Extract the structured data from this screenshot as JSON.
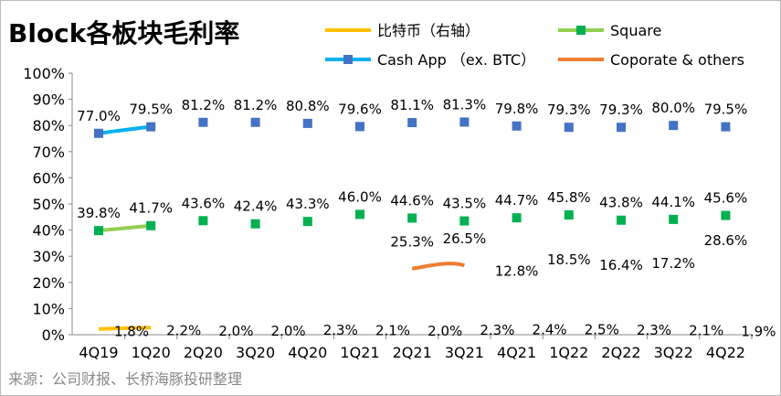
{
  "title": "Block各板块毛利率",
  "source": "来源：公司财报、长桥海豚投研整理",
  "chart_data": {
    "type": "line",
    "categories": [
      "4Q19",
      "1Q20",
      "2Q20",
      "3Q20",
      "4Q20",
      "1Q21",
      "2Q21",
      "3Q21",
      "4Q21",
      "1Q22",
      "2Q22",
      "3Q22",
      "4Q22"
    ],
    "y_ticks": [
      "0%",
      "10%",
      "20%",
      "30%",
      "40%",
      "50%",
      "60%",
      "70%",
      "80%",
      "90%",
      "100%"
    ],
    "ylim": [
      0,
      100
    ],
    "legend_position": "top",
    "series": [
      {
        "name": "比特币（右轴）",
        "color": "#FFC000",
        "axis": "right",
        "marker": "none",
        "values": [
          1.8,
          2.2,
          2.0,
          2.0,
          2.3,
          2.1,
          2.0,
          2.3,
          2.4,
          2.5,
          2.3,
          2.1,
          1.9
        ]
      },
      {
        "name": "Square",
        "color": "#92D050",
        "marker": "square",
        "marker_color": "#00B050",
        "values": [
          39.8,
          41.7,
          43.6,
          42.4,
          43.3,
          46.0,
          44.6,
          43.5,
          44.7,
          45.8,
          43.8,
          44.1,
          45.6
        ]
      },
      {
        "name": "Cash App （ex. BTC）",
        "color": "#00B0F0",
        "marker": "square",
        "marker_color": "#4472C4",
        "values": [
          77.0,
          79.5,
          81.2,
          81.2,
          80.8,
          79.6,
          81.1,
          81.3,
          79.8,
          79.3,
          79.3,
          80.0,
          79.5
        ]
      },
      {
        "name": "Coporate & others",
        "color": "#ED7D31",
        "marker": "none",
        "values": [
          null,
          null,
          null,
          null,
          null,
          null,
          25.3,
          26.5,
          12.8,
          18.5,
          16.4,
          17.2,
          28.6
        ]
      }
    ]
  }
}
